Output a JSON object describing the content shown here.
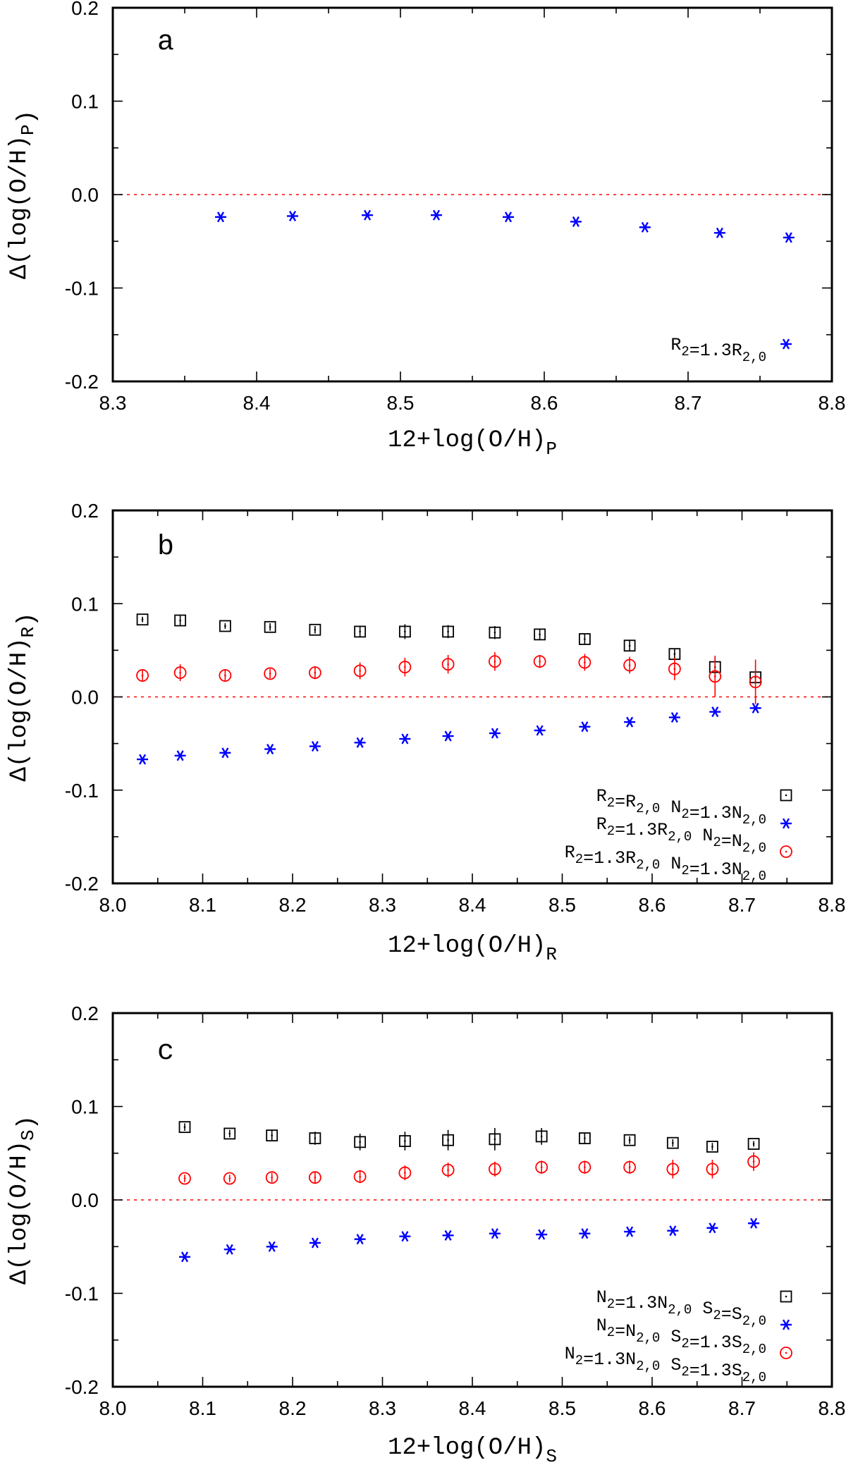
{
  "colors": {
    "black": "#000000",
    "blue": "#0000ff",
    "red": "#ff0000",
    "zero_line": "#ff0000"
  },
  "chart_data": [
    {
      "type": "scatter",
      "panel_label": "a",
      "xlim": [
        8.3,
        8.8
      ],
      "ylim": [
        -0.2,
        0.2
      ],
      "xticks": [
        "8.3",
        "8.4",
        "8.5",
        "8.6",
        "8.7",
        "8.8"
      ],
      "yticks": [
        "0.2",
        "0.1",
        "0.0",
        "-0.1",
        "-0.2"
      ],
      "xlabel": {
        "base": "12+log(O/H)",
        "sub": "P"
      },
      "ylabel": {
        "base": "Δ(log(O/H)",
        "sub": "P",
        "tail": ")"
      },
      "series": [
        {
          "name": "R2=1.3R2,0",
          "marker": "asterisk",
          "color": "#0000ff",
          "legend": [
            {
              "base": "R",
              "sub": "2"
            },
            {
              "base": "=1.3R",
              "sub": "2,0"
            }
          ],
          "points": [
            [
              8.375,
              -0.024,
              0
            ],
            [
              8.425,
              -0.023,
              0
            ],
            [
              8.477,
              -0.022,
              0
            ],
            [
              8.525,
              -0.022,
              0
            ],
            [
              8.575,
              -0.024,
              0
            ],
            [
              8.622,
              -0.029,
              0
            ],
            [
              8.67,
              -0.035,
              0
            ],
            [
              8.722,
              -0.041,
              0
            ],
            [
              8.77,
              -0.046,
              0
            ]
          ]
        }
      ]
    },
    {
      "type": "scatter",
      "panel_label": "b",
      "xlim": [
        8.0,
        8.8
      ],
      "ylim": [
        -0.2,
        0.2
      ],
      "xticks": [
        "8.0",
        "8.1",
        "8.2",
        "8.3",
        "8.4",
        "8.5",
        "8.6",
        "8.7",
        "8.8"
      ],
      "yticks": [
        "0.2",
        "0.1",
        "0.0",
        "-0.1",
        "-0.2"
      ],
      "xlabel": {
        "base": "12+log(O/H)",
        "sub": "R"
      },
      "ylabel": {
        "base": "Δ(log(O/H)",
        "sub": "R",
        "tail": ")"
      },
      "series": [
        {
          "name": "R2=R2,0 N2=1.3N2,0",
          "marker": "square",
          "color": "#000000",
          "legend": [
            {
              "base": "R",
              "sub": "2"
            },
            {
              "base": "=R",
              "sub": "2,0"
            },
            {
              "base": "  N",
              "sub": "2"
            },
            {
              "base": "=1.3N",
              "sub": "2,0"
            }
          ],
          "points": [
            [
              8.033,
              0.083,
              0.003
            ],
            [
              8.075,
              0.082,
              0.005
            ],
            [
              8.125,
              0.076,
              0.003
            ],
            [
              8.175,
              0.075,
              0.004
            ],
            [
              8.225,
              0.072,
              0.004
            ],
            [
              8.275,
              0.07,
              0.006
            ],
            [
              8.325,
              0.07,
              0.008
            ],
            [
              8.373,
              0.07,
              0.007
            ],
            [
              8.425,
              0.069,
              0.007
            ],
            [
              8.475,
              0.067,
              0.006
            ],
            [
              8.525,
              0.062,
              0.006
            ],
            [
              8.575,
              0.055,
              0.006
            ],
            [
              8.625,
              0.046,
              0.006
            ],
            [
              8.67,
              0.032,
              0.012
            ],
            [
              8.715,
              0.021,
              0.007
            ]
          ]
        },
        {
          "name": "R2=1.3R2,0 N2=N2,0",
          "marker": "asterisk",
          "color": "#0000ff",
          "legend": [
            {
              "base": "R",
              "sub": "2"
            },
            {
              "base": "=1.3R",
              "sub": "2,0"
            },
            {
              "base": "  N",
              "sub": "2"
            },
            {
              "base": "=N",
              "sub": "2,0"
            }
          ],
          "points": [
            [
              8.033,
              -0.067,
              0
            ],
            [
              8.075,
              -0.063,
              0
            ],
            [
              8.125,
              -0.06,
              0
            ],
            [
              8.175,
              -0.056,
              0
            ],
            [
              8.225,
              -0.053,
              0
            ],
            [
              8.275,
              -0.049,
              0
            ],
            [
              8.325,
              -0.045,
              0
            ],
            [
              8.373,
              -0.042,
              0
            ],
            [
              8.425,
              -0.039,
              0
            ],
            [
              8.475,
              -0.036,
              0
            ],
            [
              8.525,
              -0.032,
              0
            ],
            [
              8.575,
              -0.027,
              0
            ],
            [
              8.625,
              -0.022,
              0
            ],
            [
              8.67,
              -0.016,
              0
            ],
            [
              8.715,
              -0.012,
              0
            ]
          ]
        },
        {
          "name": "R2=1.3R2,0 N2=1.3N2,0",
          "marker": "circle",
          "color": "#ff0000",
          "legend": [
            {
              "base": "R",
              "sub": "2"
            },
            {
              "base": "=1.3R",
              "sub": "2,0"
            },
            {
              "base": "  N",
              "sub": "2"
            },
            {
              "base": "=1.3N",
              "sub": "2,0"
            }
          ],
          "points": [
            [
              8.033,
              0.023,
              0.006
            ],
            [
              8.075,
              0.026,
              0.009
            ],
            [
              8.125,
              0.023,
              0.006
            ],
            [
              8.175,
              0.025,
              0.005
            ],
            [
              8.225,
              0.026,
              0.007
            ],
            [
              8.275,
              0.028,
              0.009
            ],
            [
              8.325,
              0.032,
              0.01
            ],
            [
              8.373,
              0.035,
              0.01
            ],
            [
              8.425,
              0.038,
              0.01
            ],
            [
              8.475,
              0.038,
              0.007
            ],
            [
              8.525,
              0.037,
              0.009
            ],
            [
              8.575,
              0.034,
              0.009
            ],
            [
              8.625,
              0.03,
              0.012
            ],
            [
              8.67,
              0.022,
              0.022
            ],
            [
              8.715,
              0.016,
              0.024
            ]
          ]
        }
      ]
    },
    {
      "type": "scatter",
      "panel_label": "c",
      "xlim": [
        8.0,
        8.8
      ],
      "ylim": [
        -0.2,
        0.2
      ],
      "xticks": [
        "8.0",
        "8.1",
        "8.2",
        "8.3",
        "8.4",
        "8.5",
        "8.6",
        "8.7",
        "8.8"
      ],
      "yticks": [
        "0.2",
        "0.1",
        "0.0",
        "-0.1",
        "-0.2"
      ],
      "xlabel": {
        "base": "12+log(O/H)",
        "sub": "S"
      },
      "ylabel": {
        "base": "Δ(log(O/H)",
        "sub": "S",
        "tail": ")"
      },
      "series": [
        {
          "name": "N2=1.3N2,0 S2=S2,0",
          "marker": "square",
          "color": "#000000",
          "legend": [
            {
              "base": "N",
              "sub": "2"
            },
            {
              "base": "=1.3N",
              "sub": "2,0"
            },
            {
              "base": "  S",
              "sub": "2"
            },
            {
              "base": "=S",
              "sub": "2,0"
            }
          ],
          "points": [
            [
              8.08,
              0.078,
              0.004
            ],
            [
              8.13,
              0.071,
              0.004
            ],
            [
              8.177,
              0.069,
              0.005
            ],
            [
              8.225,
              0.066,
              0.007
            ],
            [
              8.275,
              0.062,
              0.009
            ],
            [
              8.325,
              0.063,
              0.01
            ],
            [
              8.373,
              0.064,
              0.011
            ],
            [
              8.425,
              0.065,
              0.012
            ],
            [
              8.477,
              0.068,
              0.009
            ],
            [
              8.525,
              0.066,
              0.006
            ],
            [
              8.575,
              0.064,
              0.004
            ],
            [
              8.623,
              0.061,
              0.004
            ],
            [
              8.667,
              0.057,
              0.004
            ],
            [
              8.713,
              0.06,
              0.003
            ]
          ]
        },
        {
          "name": "N2=N2,0 S2=1.3S2,0",
          "marker": "asterisk",
          "color": "#0000ff",
          "legend": [
            {
              "base": "N",
              "sub": "2"
            },
            {
              "base": "=N",
              "sub": "2,0"
            },
            {
              "base": "  S",
              "sub": "2"
            },
            {
              "base": "=1.3S",
              "sub": "2,0"
            }
          ],
          "points": [
            [
              8.08,
              -0.061,
              0
            ],
            [
              8.13,
              -0.053,
              0
            ],
            [
              8.177,
              -0.05,
              0
            ],
            [
              8.225,
              -0.046,
              0
            ],
            [
              8.275,
              -0.042,
              0
            ],
            [
              8.325,
              -0.039,
              0
            ],
            [
              8.373,
              -0.038,
              0
            ],
            [
              8.425,
              -0.036,
              0
            ],
            [
              8.477,
              -0.037,
              0
            ],
            [
              8.525,
              -0.036,
              0
            ],
            [
              8.575,
              -0.034,
              0
            ],
            [
              8.623,
              -0.033,
              0
            ],
            [
              8.667,
              -0.03,
              0
            ],
            [
              8.713,
              -0.025,
              0
            ]
          ]
        },
        {
          "name": "N2=1.3N2,0 S2=1.3S2,0",
          "marker": "circle",
          "color": "#ff0000",
          "legend": [
            {
              "base": "N",
              "sub": "2"
            },
            {
              "base": "=1.3N",
              "sub": "2,0"
            },
            {
              "base": "  S",
              "sub": "2"
            },
            {
              "base": "=1.3S",
              "sub": "2,0"
            }
          ],
          "points": [
            [
              8.08,
              0.023,
              0.004
            ],
            [
              8.13,
              0.023,
              0.004
            ],
            [
              8.177,
              0.024,
              0.005
            ],
            [
              8.225,
              0.024,
              0.006
            ],
            [
              8.275,
              0.025,
              0.007
            ],
            [
              8.325,
              0.029,
              0.008
            ],
            [
              8.373,
              0.032,
              0.008
            ],
            [
              8.425,
              0.033,
              0.008
            ],
            [
              8.477,
              0.035,
              0.007
            ],
            [
              8.525,
              0.035,
              0.007
            ],
            [
              8.575,
              0.035,
              0.007
            ],
            [
              8.623,
              0.033,
              0.01
            ],
            [
              8.667,
              0.033,
              0.01
            ],
            [
              8.713,
              0.041,
              0.01
            ]
          ]
        }
      ]
    }
  ]
}
